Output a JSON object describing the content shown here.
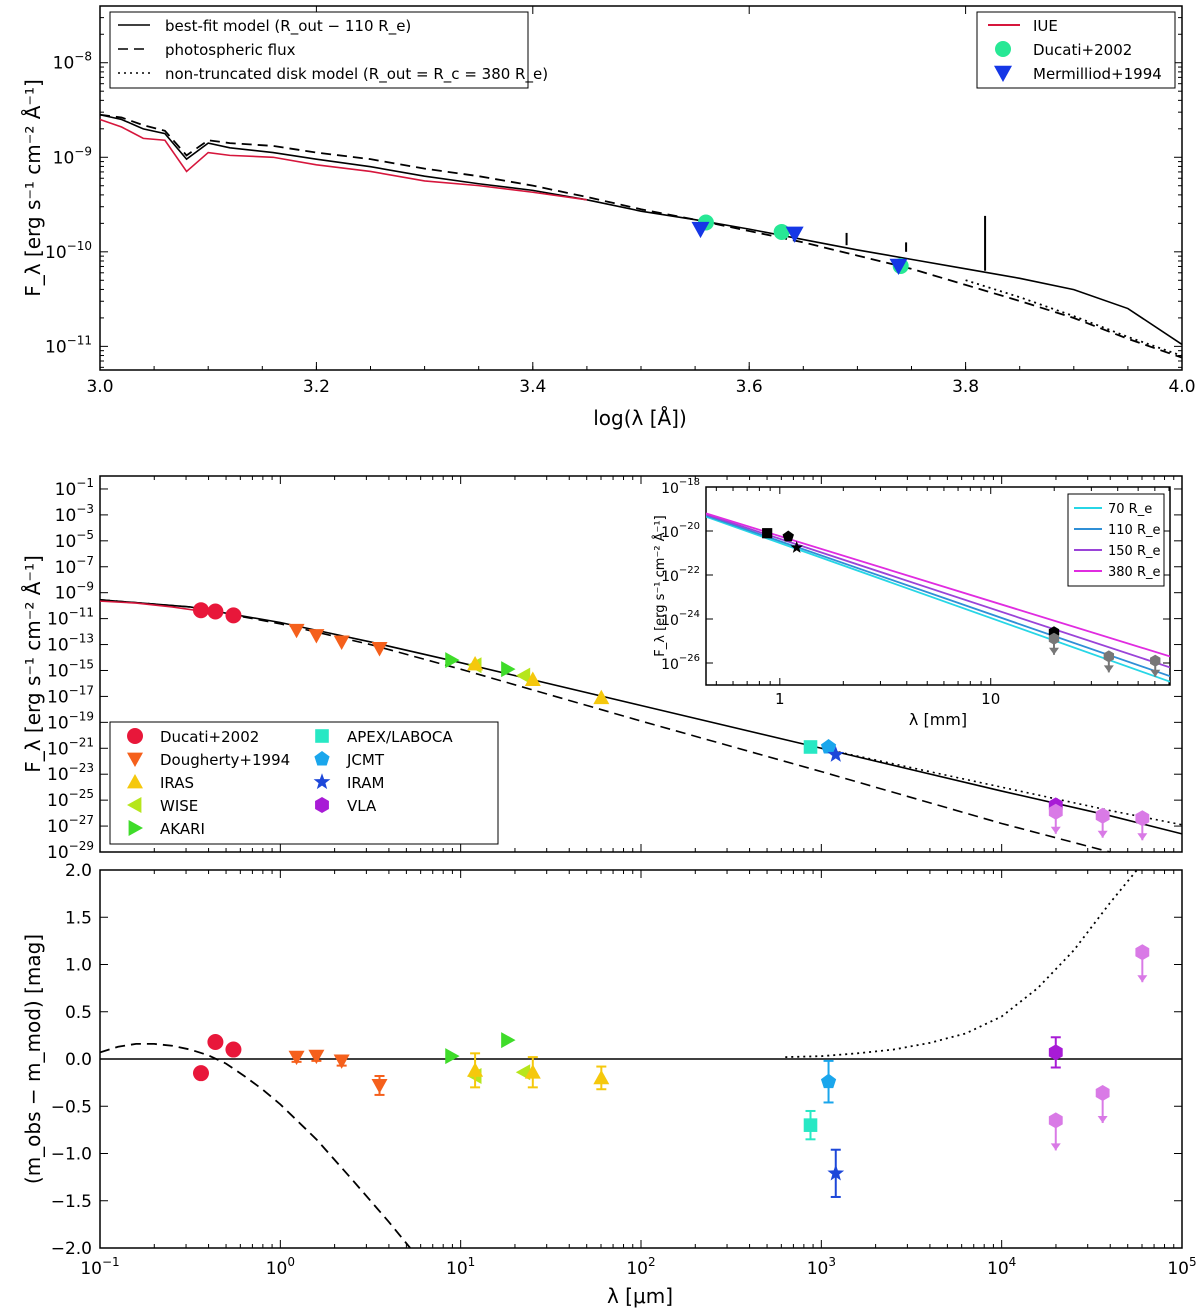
{
  "figure": {
    "top": {
      "ylabel": "F_λ [erg s⁻¹ cm⁻² Å⁻¹]",
      "xlabel": "log(λ [Å])"
    },
    "middle": {
      "ylabel": "F_λ [erg s⁻¹ cm⁻² Å⁻¹]"
    },
    "inset": {
      "ylabel": "F_λ [erg s⁻¹ cm⁻² Å⁻¹]",
      "xlabel": "λ [mm]"
    },
    "bottom": {
      "ylabel": "(m_obs − m_mod) [mag]",
      "xlabel": "λ [μm]"
    }
  },
  "chart_data": [
    {
      "id": "top",
      "type": "line",
      "title": "",
      "xlabel": "log(λ [Å])",
      "ylabel": "F_λ [erg s⁻¹ cm⁻² Å⁻¹]",
      "xlim": [
        3.0,
        4.0
      ],
      "ylim_log10": [
        -11.25,
        -7.4
      ],
      "yscale": "log",
      "x_ticks": [
        "3.0",
        "3.2",
        "3.4",
        "3.6",
        "3.8",
        "4.0"
      ],
      "y_ticks": [
        "10^-11",
        "10^-10",
        "10^-9",
        "10^-8"
      ],
      "legends": [
        {
          "placement": "top-left",
          "entries": [
            {
              "label": "best-fit model (R_out − 110 R_e)",
              "style": "solid",
              "color": "#000000"
            },
            {
              "label": "photospheric flux",
              "style": "dashed",
              "color": "#000000"
            },
            {
              "label": "non-truncated disk model (R_out = R_c = 380 R_e)",
              "style": "dotted",
              "color": "#000000"
            }
          ]
        },
        {
          "placement": "top-right",
          "entries": [
            {
              "label": "IUE",
              "style": "solid",
              "color": "#d6163c"
            },
            {
              "label": "Ducati+2002",
              "marker": "circle",
              "color": "#27e895"
            },
            {
              "label": "Mermilliod+1994",
              "marker": "triangle-down",
              "color": "#1537e6"
            }
          ]
        }
      ],
      "series": [
        {
          "name": "best-fit model",
          "style": "solid",
          "color": "#000000",
          "x": [
            3.0,
            3.02,
            3.04,
            3.06,
            3.08,
            3.1,
            3.12,
            3.16,
            3.2,
            3.25,
            3.3,
            3.35,
            3.4,
            3.45,
            3.5,
            3.55,
            3.6,
            3.65,
            3.7,
            3.75,
            3.8,
            3.85,
            3.9,
            3.95,
            4.0
          ],
          "y_log10": [
            -8.55,
            -8.6,
            -8.7,
            -8.75,
            -9.02,
            -8.85,
            -8.9,
            -8.95,
            -9.02,
            -9.1,
            -9.2,
            -9.28,
            -9.35,
            -9.45,
            -9.57,
            -9.66,
            -9.76,
            -9.87,
            -9.98,
            -10.08,
            -10.18,
            -10.28,
            -10.4,
            -10.6,
            -10.98
          ]
        },
        {
          "name": "photospheric flux",
          "style": "dashed",
          "color": "#000000",
          "x": [
            3.0,
            3.02,
            3.04,
            3.06,
            3.08,
            3.1,
            3.12,
            3.16,
            3.2,
            3.25,
            3.3,
            3.35,
            3.4,
            3.45,
            3.5,
            3.55,
            3.6,
            3.65,
            3.7,
            3.75,
            3.8,
            3.85,
            3.9,
            3.95,
            4.0
          ],
          "y_log10": [
            -8.55,
            -8.58,
            -8.66,
            -8.72,
            -8.98,
            -8.82,
            -8.85,
            -8.88,
            -8.95,
            -9.02,
            -9.12,
            -9.2,
            -9.3,
            -9.42,
            -9.55,
            -9.66,
            -9.78,
            -9.9,
            -10.04,
            -10.18,
            -10.35,
            -10.52,
            -10.7,
            -10.92,
            -11.12
          ]
        },
        {
          "name": "non-truncated disk model",
          "style": "dotted",
          "color": "#000000",
          "x": [
            3.8,
            3.85,
            3.9,
            3.95,
            4.0
          ],
          "y_log10": [
            -10.3,
            -10.48,
            -10.68,
            -10.9,
            -11.1
          ]
        },
        {
          "name": "IUE",
          "style": "solid",
          "color": "#d6163c",
          "x": [
            3.0,
            3.02,
            3.04,
            3.06,
            3.08,
            3.1,
            3.12,
            3.16,
            3.2,
            3.25,
            3.3,
            3.35,
            3.4,
            3.45
          ],
          "y_log10": [
            -8.6,
            -8.68,
            -8.8,
            -8.82,
            -9.15,
            -8.95,
            -8.98,
            -9.0,
            -9.08,
            -9.15,
            -9.25,
            -9.3,
            -9.37,
            -9.45
          ]
        },
        {
          "name": "Ducati+2002",
          "marker": "circle",
          "color": "#27e895",
          "x": [
            3.56,
            3.63,
            3.74
          ],
          "y_log10": [
            -9.69,
            -9.79,
            -10.15
          ]
        },
        {
          "name": "Mermilliod+1994",
          "marker": "triangle-down",
          "color": "#1537e6",
          "x": [
            3.555,
            3.642,
            3.738
          ],
          "y_log10": [
            -9.76,
            -9.81,
            -10.15
          ]
        }
      ]
    },
    {
      "id": "middle",
      "type": "line",
      "xlabel": "",
      "ylabel": "F_λ [erg s⁻¹ cm⁻² Å⁻¹]",
      "xscale": "log",
      "xlim_log10": [
        -1,
        5
      ],
      "ylim_log10": [
        -29,
        0
      ],
      "y_ticks": [
        "10^-1",
        "10^-3",
        "10^-5",
        "10^-7",
        "10^-9",
        "10^-11",
        "10^-13",
        "10^-15",
        "10^-17",
        "10^-19",
        "10^-21",
        "10^-23",
        "10^-25",
        "10^-27",
        "10^-29"
      ],
      "legend": {
        "placement": "bottom-left",
        "entries": [
          {
            "label": "Ducati+2002",
            "marker": "circle",
            "color": "#e8173a"
          },
          {
            "label": "Dougherty+1994",
            "marker": "triangle-down",
            "color": "#f5601c"
          },
          {
            "label": "IRAS",
            "marker": "triangle-up",
            "color": "#f5c80c"
          },
          {
            "label": "WISE",
            "marker": "triangle-left",
            "color": "#b6e61c"
          },
          {
            "label": "AKARI",
            "marker": "triangle-right",
            "color": "#3fdc2a"
          },
          {
            "label": "APEX/LABOCA",
            "marker": "square",
            "color": "#27e8c4"
          },
          {
            "label": "JCMT",
            "marker": "pentagon",
            "color": "#1aa6ec"
          },
          {
            "label": "IRAM",
            "marker": "star",
            "color": "#1d47d9"
          },
          {
            "label": "VLA",
            "marker": "hexagon",
            "color": "#a81bd6"
          }
        ]
      },
      "lines": [
        {
          "name": "best-fit model",
          "style": "solid",
          "x_log10": [
            -1,
            -0.5,
            0,
            0.5,
            1,
            2,
            3,
            4,
            4.6,
            5
          ],
          "y_log10": [
            -9.55,
            -10.1,
            -11.3,
            -12.8,
            -14.4,
            -17.7,
            -21.0,
            -24.3,
            -26.2,
            -27.6
          ]
        },
        {
          "name": "photospheric flux",
          "style": "dashed",
          "x_log10": [
            -1,
            -0.5,
            0,
            0.5,
            1,
            2,
            3,
            4,
            4.6
          ],
          "y_log10": [
            -9.55,
            -10.1,
            -11.4,
            -13.0,
            -14.9,
            -18.9,
            -22.8,
            -26.8,
            -29.0
          ]
        },
        {
          "name": "non-truncated disk model",
          "style": "dotted",
          "x_log10": [
            3,
            4,
            4.6,
            5
          ],
          "y_log10": [
            -21.0,
            -24.0,
            -25.8,
            -26.9
          ]
        },
        {
          "name": "IUE",
          "style": "solid",
          "color": "#d6163c",
          "x_log10": [
            -1,
            -0.8,
            -0.6,
            -0.4
          ],
          "y_log10": [
            -9.65,
            -9.8,
            -10.1,
            -10.5
          ]
        }
      ],
      "points": [
        {
          "name": "Ducati+2002",
          "marker": "circle",
          "color": "#e8173a",
          "x_log10": [
            -0.44,
            -0.36,
            -0.26
          ],
          "y_log10": [
            -10.35,
            -10.45,
            -10.75
          ]
        },
        {
          "name": "Dougherty+1994",
          "marker": "triangle-down",
          "color": "#f5601c",
          "x_log10": [
            0.09,
            0.2,
            0.34,
            0.55
          ],
          "y_log10": [
            -11.9,
            -12.3,
            -12.8,
            -13.3
          ]
        },
        {
          "name": "AKARI",
          "marker": "triangle-right",
          "color": "#3fdc2a",
          "x_log10": [
            0.95,
            1.26
          ],
          "y_log10": [
            -14.2,
            -14.9
          ]
        },
        {
          "name": "WISE",
          "marker": "triangle-left",
          "color": "#b6e61c",
          "x_log10": [
            1.08,
            1.35
          ],
          "y_log10": [
            -14.6,
            -15.4
          ]
        },
        {
          "name": "IRAS",
          "marker": "triangle-up",
          "color": "#f5c80c",
          "x_log10": [
            1.08,
            1.4,
            1.78
          ],
          "y_log10": [
            -14.5,
            -15.7,
            -17.1
          ]
        },
        {
          "name": "APEX/LABOCA",
          "marker": "square",
          "color": "#27e8c4",
          "x_log10": [
            2.94
          ],
          "y_log10": [
            -20.9
          ]
        },
        {
          "name": "JCMT",
          "marker": "pentagon",
          "color": "#1aa6ec",
          "x_log10": [
            3.04
          ],
          "y_log10": [
            -20.9
          ]
        },
        {
          "name": "IRAM",
          "marker": "star",
          "color": "#1d47d9",
          "x_log10": [
            3.08
          ],
          "y_log10": [
            -21.5
          ]
        },
        {
          "name": "VLA",
          "marker": "hexagon",
          "color": "#a81bd6",
          "x_log10": [
            4.3
          ],
          "y_log10": [
            -25.4
          ]
        },
        {
          "name": "VLA upper limits",
          "marker": "hexagon",
          "color": "#d97ae6",
          "x_log10": [
            4.3,
            4.56,
            4.78
          ],
          "y_log10": [
            -25.9,
            -26.2,
            -26.4
          ],
          "upper_limit": true
        }
      ]
    },
    {
      "id": "inset",
      "type": "line",
      "xlabel": "λ [mm]",
      "ylabel": "F_λ [erg s⁻¹ cm⁻² Å⁻¹]",
      "xscale": "log",
      "xlim_log10": [
        -0.35,
        1.85
      ],
      "ylim_log10": [
        -27,
        -18
      ],
      "x_ticks": [
        "1",
        "10"
      ],
      "y_ticks": [
        "10^-18",
        "10^-20",
        "10^-22",
        "10^-24",
        "10^-26"
      ],
      "legend": {
        "placement": "top-right",
        "entries": [
          {
            "label": "70 R_e",
            "color": "#27d6e6"
          },
          {
            "label": "110 R_e",
            "color": "#2f8fd6"
          },
          {
            "label": "150 R_e",
            "color": "#9a43d8"
          },
          {
            "label": "380 R_e",
            "color": "#e02ce0"
          }
        ]
      },
      "series": [
        {
          "name": "70 R_e",
          "color": "#27d6e6",
          "x_log10": [
            -0.35,
            1.85
          ],
          "y_log10": [
            -19.35,
            -26.85
          ]
        },
        {
          "name": "110 R_e",
          "color": "#2f8fd6",
          "x_log10": [
            -0.35,
            1.85
          ],
          "y_log10": [
            -19.3,
            -26.6
          ]
        },
        {
          "name": "150 R_e",
          "color": "#9a43d8",
          "x_log10": [
            -0.35,
            1.85
          ],
          "y_log10": [
            -19.25,
            -26.2
          ]
        },
        {
          "name": "380 R_e",
          "color": "#e02ce0",
          "x_log10": [
            -0.35,
            1.85
          ],
          "y_log10": [
            -19.2,
            -25.7
          ]
        }
      ],
      "points": [
        {
          "name": "APEX/LABOCA",
          "marker": "square",
          "color": "#000000",
          "x_log10": [
            -0.06
          ],
          "y_log10": [
            -20.1
          ]
        },
        {
          "name": "JCMT",
          "marker": "pentagon",
          "color": "#000000",
          "x_log10": [
            0.04
          ],
          "y_log10": [
            -20.25
          ]
        },
        {
          "name": "IRAM",
          "marker": "star",
          "color": "#000000",
          "x_log10": [
            0.08
          ],
          "y_log10": [
            -20.75
          ]
        },
        {
          "name": "VLA",
          "marker": "hexagon",
          "color": "#000000",
          "x_log10": [
            1.3
          ],
          "y_log10": [
            -24.6
          ]
        },
        {
          "name": "VLA upper limits",
          "marker": "hexagon",
          "color": "#777777",
          "x_log10": [
            1.3,
            1.56,
            1.78
          ],
          "y_log10": [
            -24.9,
            -25.7,
            -25.9
          ],
          "upper_limit": true
        }
      ]
    },
    {
      "id": "bottom",
      "type": "scatter",
      "xlabel": "λ [μm]",
      "ylabel": "(m_obs − m_mod) [mag]",
      "xscale": "log",
      "xlim_log10": [
        -1,
        5
      ],
      "ylim": [
        -2.0,
        2.0
      ],
      "x_ticks": [
        "10^-1",
        "10^0",
        "10^1",
        "10^2",
        "10^3",
        "10^4",
        "10^5"
      ],
      "y_ticks": [
        "2.0",
        "1.5",
        "1.0",
        "0.5",
        "0.0",
        "-0.5",
        "-1.0",
        "-1.5",
        "-2.0"
      ],
      "lines": [
        {
          "name": "zero",
          "style": "solid",
          "x_log10": [
            -1,
            5
          ],
          "y": [
            0,
            0
          ]
        },
        {
          "name": "photospheric flux",
          "style": "dashed",
          "x_log10": [
            -1,
            -0.9,
            -0.8,
            -0.7,
            -0.6,
            -0.5,
            -0.4,
            -0.3,
            -0.2,
            -0.1,
            0.0,
            0.2,
            0.4,
            0.6,
            0.72
          ],
          "y": [
            0.07,
            0.13,
            0.16,
            0.16,
            0.14,
            0.1,
            0.04,
            -0.05,
            -0.18,
            -0.32,
            -0.48,
            -0.85,
            -1.28,
            -1.72,
            -2.0
          ]
        },
        {
          "name": "non-truncated disk model",
          "style": "dotted",
          "x_log10": [
            2.8,
            3.0,
            3.2,
            3.4,
            3.6,
            3.8,
            4.0,
            4.2,
            4.4,
            4.6,
            4.75
          ],
          "y": [
            0.02,
            0.03,
            0.06,
            0.1,
            0.17,
            0.27,
            0.45,
            0.75,
            1.15,
            1.65,
            2.0
          ]
        }
      ],
      "points": [
        {
          "name": "Ducati+2002",
          "marker": "circle",
          "color": "#e8173a",
          "x_log10": [
            -0.44,
            -0.36,
            -0.26
          ],
          "y": [
            -0.15,
            0.18,
            0.1
          ]
        },
        {
          "name": "Dougherty+1994",
          "marker": "triangle-down",
          "color": "#f5601c",
          "x_log10": [
            0.09,
            0.2,
            0.34,
            0.55
          ],
          "y": [
            0.02,
            0.03,
            -0.02,
            -0.28
          ],
          "err": [
            0.05,
            0.05,
            0.05,
            0.1
          ]
        },
        {
          "name": "AKARI",
          "marker": "triangle-right",
          "color": "#3fdc2a",
          "x_log10": [
            0.95,
            1.26
          ],
          "y": [
            0.03,
            0.2
          ]
        },
        {
          "name": "WISE",
          "marker": "triangle-left",
          "color": "#b6e61c",
          "x_log10": [
            1.08,
            1.35
          ],
          "y": [
            -0.18,
            -0.14
          ]
        },
        {
          "name": "IRAS",
          "marker": "triangle-up",
          "color": "#f5c80c",
          "x_log10": [
            1.08,
            1.4,
            1.78
          ],
          "y": [
            -0.12,
            -0.14,
            -0.2
          ],
          "err": [
            0.18,
            0.16,
            0.12
          ]
        },
        {
          "name": "APEX/LABOCA",
          "marker": "square",
          "color": "#27e8c4",
          "x_log10": [
            2.94
          ],
          "y": [
            -0.7
          ],
          "err": [
            0.15
          ]
        },
        {
          "name": "JCMT",
          "marker": "pentagon",
          "color": "#1aa6ec",
          "x_log10": [
            3.04
          ],
          "y": [
            -0.24
          ],
          "err": [
            0.22
          ]
        },
        {
          "name": "IRAM",
          "marker": "star",
          "color": "#1d47d9",
          "x_log10": [
            3.08
          ],
          "y": [
            -1.21
          ],
          "err": [
            0.25
          ]
        },
        {
          "name": "VLA",
          "marker": "hexagon",
          "color": "#a81bd6",
          "x_log10": [
            4.3
          ],
          "y": [
            0.07
          ],
          "err": [
            0.16
          ]
        },
        {
          "name": "VLA upper limits",
          "marker": "hexagon",
          "color": "#d97ae6",
          "x_log10": [
            4.3,
            4.56,
            4.78
          ],
          "y": [
            -0.65,
            -0.36,
            1.13
          ],
          "upper_limit": true
        }
      ]
    }
  ]
}
